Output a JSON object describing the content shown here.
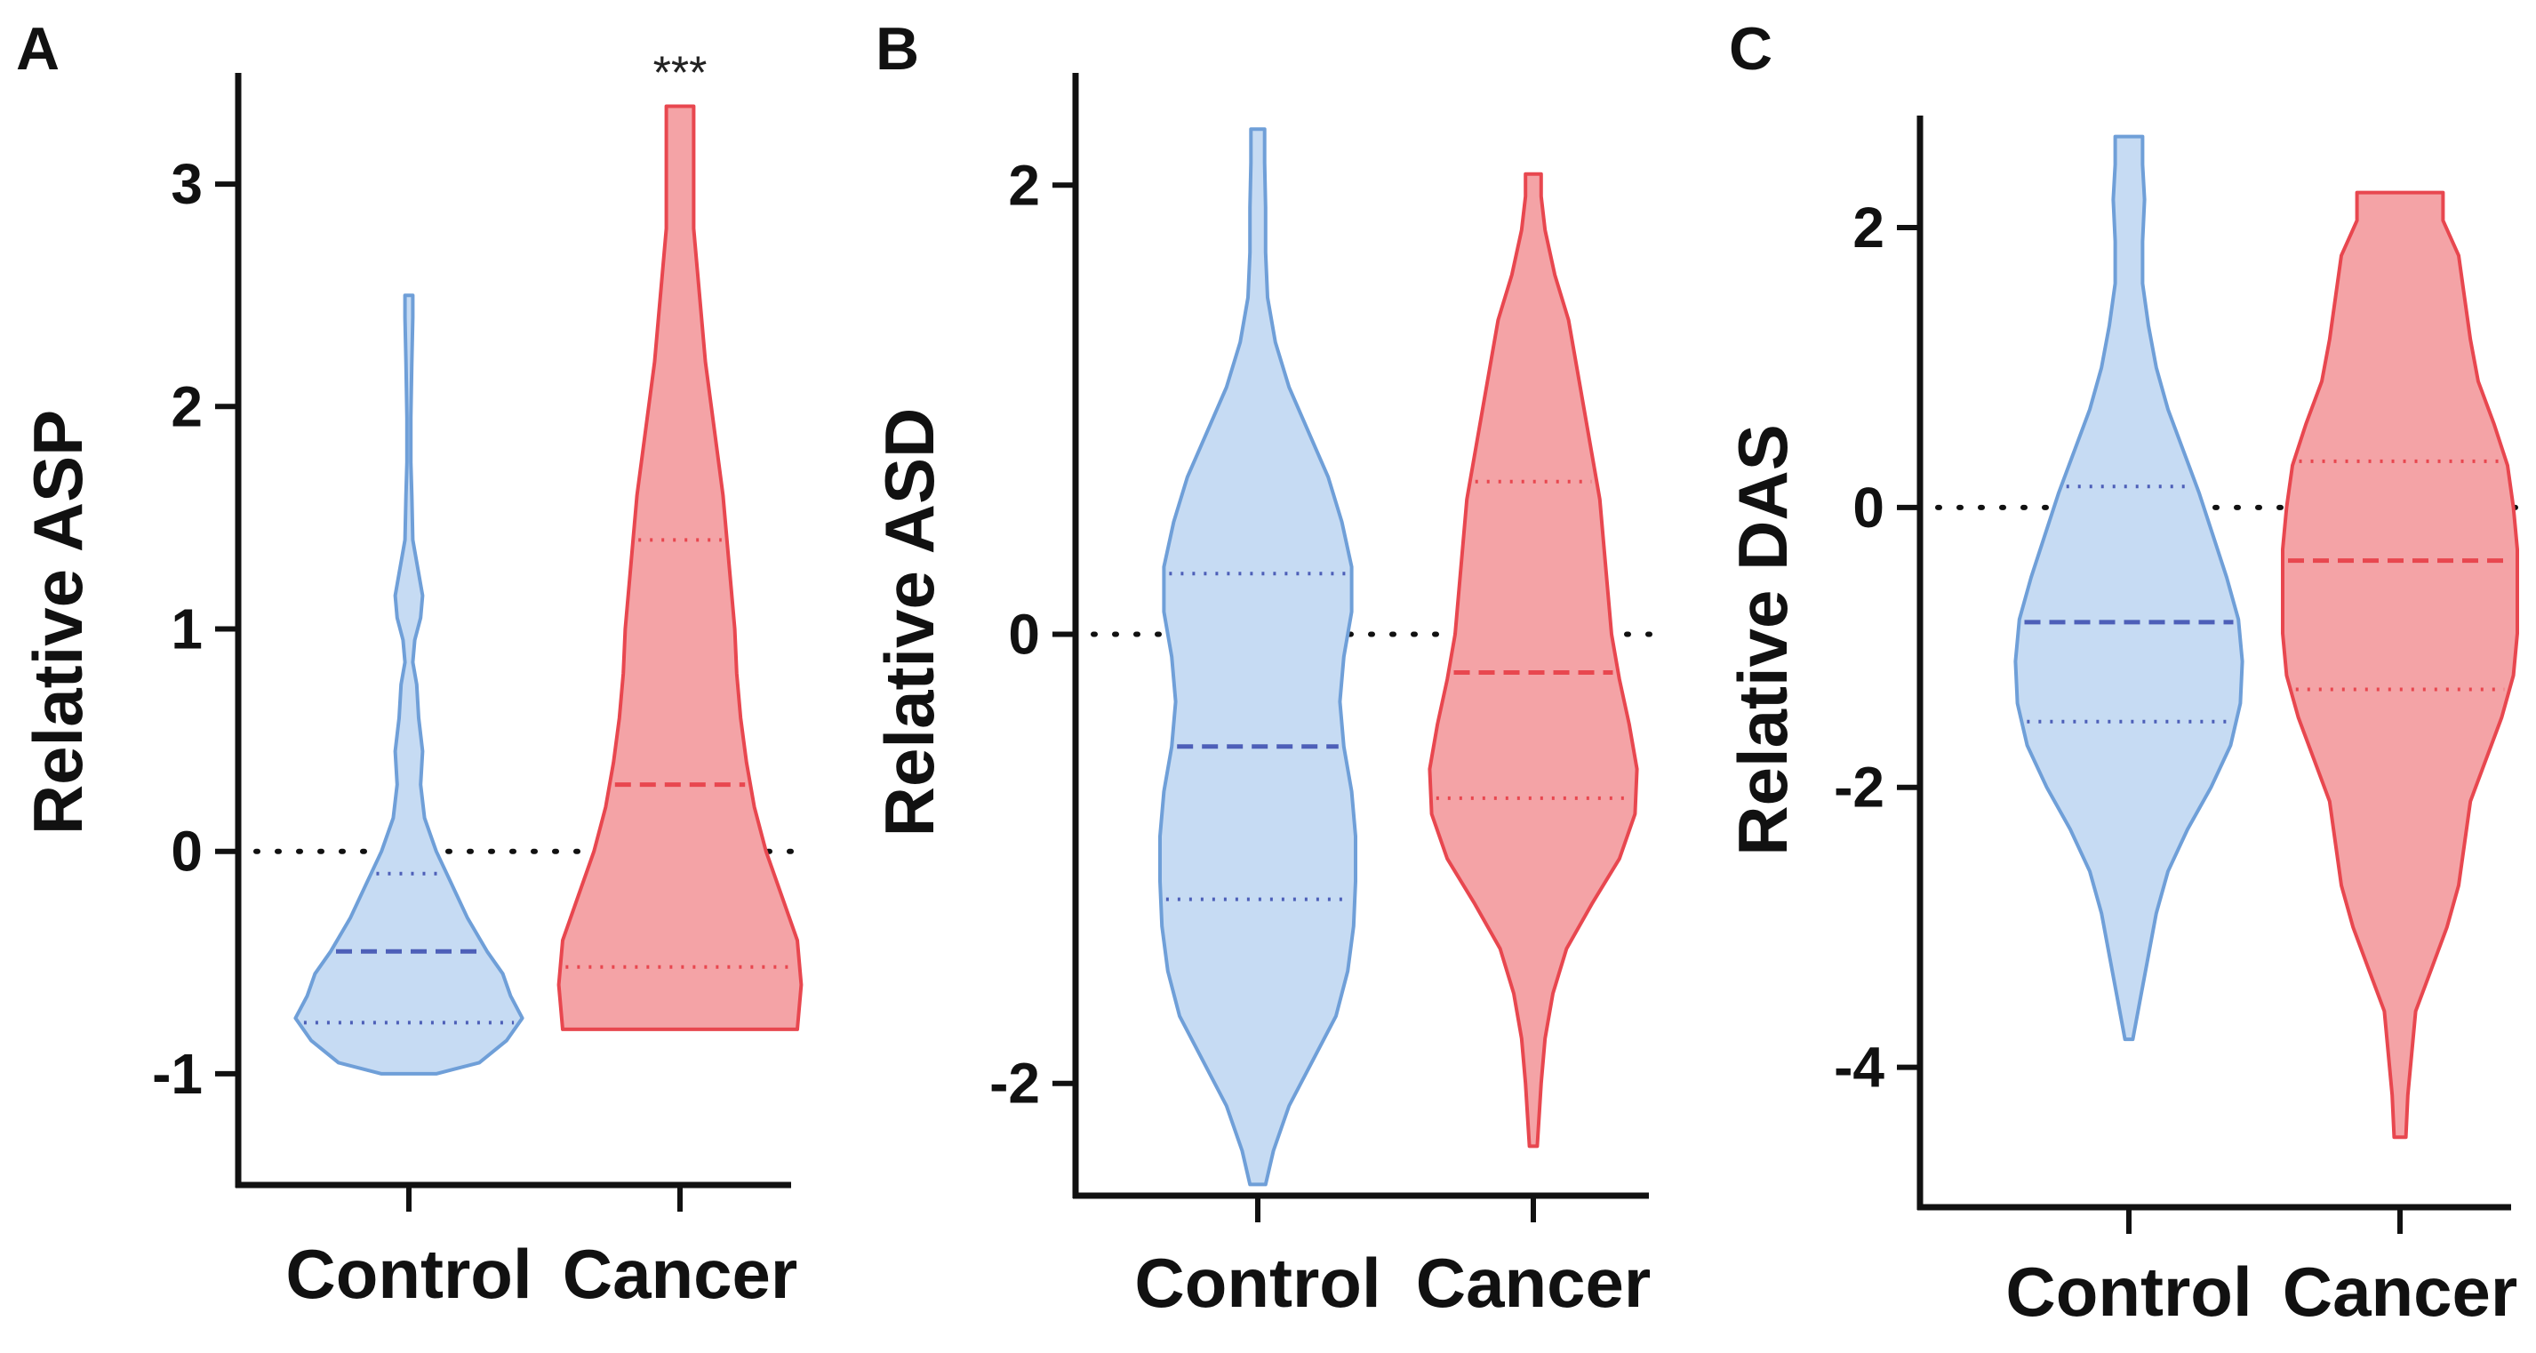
{
  "chart_data": [
    {
      "panel": "A",
      "type": "violin",
      "ylabel": "Relative ASP",
      "categories": [
        "Control",
        "Cancer"
      ],
      "ylim": [
        -1.5,
        3.5
      ],
      "yticks": [
        -1,
        0,
        1,
        2,
        3
      ],
      "tick_labels": [
        "-1",
        "0",
        "1",
        "2",
        "3"
      ],
      "reference_line": 0,
      "annotation": "***",
      "series": [
        {
          "name": "Control",
          "color": "#6f9fd8",
          "fill": "#c6dbf3",
          "min": -1.0,
          "max": 2.5,
          "median": -0.45,
          "q1": -0.77,
          "q3": -0.1,
          "profile": [
            [
              -1.0,
              0.14
            ],
            [
              -0.95,
              0.36
            ],
            [
              -0.85,
              0.5
            ],
            [
              -0.75,
              0.58
            ],
            [
              -0.65,
              0.52
            ],
            [
              -0.55,
              0.48
            ],
            [
              -0.45,
              0.4
            ],
            [
              -0.3,
              0.3
            ],
            [
              -0.15,
              0.22
            ],
            [
              0.0,
              0.14
            ],
            [
              0.15,
              0.08
            ],
            [
              0.3,
              0.06
            ],
            [
              0.45,
              0.07
            ],
            [
              0.6,
              0.05
            ],
            [
              0.75,
              0.04
            ],
            [
              0.85,
              0.02
            ],
            [
              0.95,
              0.03
            ],
            [
              1.05,
              0.06
            ],
            [
              1.15,
              0.07
            ],
            [
              1.25,
              0.05
            ],
            [
              1.4,
              0.02
            ],
            [
              1.6,
              0.015
            ],
            [
              1.75,
              0.01
            ],
            [
              1.95,
              0.01
            ],
            [
              2.2,
              0.015
            ],
            [
              2.4,
              0.02
            ],
            [
              2.5,
              0.02
            ]
          ]
        },
        {
          "name": "Cancer",
          "color": "#e8474f",
          "fill": "#f4a3a6",
          "min": -0.8,
          "max": 3.35,
          "median": 0.3,
          "q1": -0.52,
          "q3": 1.4,
          "profile": [
            [
              -0.8,
              0.6
            ],
            [
              -0.6,
              0.62
            ],
            [
              -0.4,
              0.6
            ],
            [
              -0.2,
              0.52
            ],
            [
              0.0,
              0.44
            ],
            [
              0.2,
              0.38
            ],
            [
              0.4,
              0.34
            ],
            [
              0.6,
              0.31
            ],
            [
              0.8,
              0.29
            ],
            [
              1.0,
              0.28
            ],
            [
              1.2,
              0.26
            ],
            [
              1.4,
              0.24
            ],
            [
              1.6,
              0.22
            ],
            [
              1.8,
              0.19
            ],
            [
              2.0,
              0.16
            ],
            [
              2.2,
              0.13
            ],
            [
              2.4,
              0.11
            ],
            [
              2.6,
              0.09
            ],
            [
              2.8,
              0.07
            ],
            [
              3.0,
              0.07
            ],
            [
              3.2,
              0.07
            ],
            [
              3.35,
              0.07
            ]
          ]
        }
      ]
    },
    {
      "panel": "B",
      "type": "violin",
      "ylabel": "Relative ASD",
      "categories": [
        "Control",
        "Cancer"
      ],
      "ylim": [
        -2.5,
        2.5
      ],
      "yticks": [
        -2,
        0,
        2
      ],
      "tick_labels": [
        "-2",
        "0",
        "2"
      ],
      "reference_line": 0,
      "series": [
        {
          "name": "Control",
          "color": "#6f9fd8",
          "fill": "#c6dbf3",
          "min": -2.45,
          "max": 2.25,
          "median": -0.5,
          "q1": -1.18,
          "q3": 0.27,
          "profile": [
            [
              -2.45,
              0.04
            ],
            [
              -2.3,
              0.08
            ],
            [
              -2.1,
              0.16
            ],
            [
              -1.9,
              0.28
            ],
            [
              -1.7,
              0.4
            ],
            [
              -1.5,
              0.46
            ],
            [
              -1.3,
              0.49
            ],
            [
              -1.1,
              0.5
            ],
            [
              -0.9,
              0.5
            ],
            [
              -0.7,
              0.48
            ],
            [
              -0.5,
              0.44
            ],
            [
              -0.3,
              0.42
            ],
            [
              -0.1,
              0.44
            ],
            [
              0.1,
              0.48
            ],
            [
              0.3,
              0.48
            ],
            [
              0.5,
              0.43
            ],
            [
              0.7,
              0.36
            ],
            [
              0.9,
              0.26
            ],
            [
              1.1,
              0.16
            ],
            [
              1.3,
              0.09
            ],
            [
              1.5,
              0.05
            ],
            [
              1.7,
              0.04
            ],
            [
              1.9,
              0.04
            ],
            [
              2.1,
              0.035
            ],
            [
              2.25,
              0.035
            ]
          ]
        },
        {
          "name": "Cancer",
          "color": "#e8474f",
          "fill": "#f4a3a6",
          "min": -2.28,
          "max": 2.05,
          "median": -0.17,
          "q1": -0.73,
          "q3": 0.68,
          "profile": [
            [
              -2.28,
              0.02
            ],
            [
              -2.0,
              0.04
            ],
            [
              -1.8,
              0.06
            ],
            [
              -1.6,
              0.1
            ],
            [
              -1.4,
              0.17
            ],
            [
              -1.2,
              0.3
            ],
            [
              -1.0,
              0.44
            ],
            [
              -0.8,
              0.52
            ],
            [
              -0.6,
              0.53
            ],
            [
              -0.4,
              0.49
            ],
            [
              -0.2,
              0.44
            ],
            [
              0.0,
              0.4
            ],
            [
              0.2,
              0.38
            ],
            [
              0.4,
              0.36
            ],
            [
              0.6,
              0.34
            ],
            [
              0.8,
              0.3
            ],
            [
              1.0,
              0.26
            ],
            [
              1.2,
              0.22
            ],
            [
              1.4,
              0.18
            ],
            [
              1.6,
              0.11
            ],
            [
              1.8,
              0.06
            ],
            [
              1.95,
              0.04
            ],
            [
              2.05,
              0.04
            ]
          ]
        }
      ]
    },
    {
      "panel": "C",
      "type": "violin",
      "ylabel": "Relative  DAS",
      "categories": [
        "Control",
        "Cancer"
      ],
      "ylim": [
        -5.0,
        2.8
      ],
      "yticks": [
        -4,
        -2,
        0,
        2
      ],
      "tick_labels": [
        "-4",
        "-2",
        "0",
        "2"
      ],
      "reference_line": 0,
      "series": [
        {
          "name": "Control",
          "color": "#6f9fd8",
          "fill": "#c6dbf3",
          "min": -3.8,
          "max": 2.65,
          "median": -0.82,
          "q1": -1.53,
          "q3": 0.15,
          "profile": [
            [
              -3.8,
              0.02
            ],
            [
              -3.5,
              0.06
            ],
            [
              -3.2,
              0.1
            ],
            [
              -2.9,
              0.14
            ],
            [
              -2.6,
              0.2
            ],
            [
              -2.3,
              0.3
            ],
            [
              -2.0,
              0.42
            ],
            [
              -1.7,
              0.52
            ],
            [
              -1.4,
              0.57
            ],
            [
              -1.1,
              0.58
            ],
            [
              -0.8,
              0.56
            ],
            [
              -0.5,
              0.5
            ],
            [
              -0.2,
              0.43
            ],
            [
              0.1,
              0.36
            ],
            [
              0.4,
              0.28
            ],
            [
              0.7,
              0.2
            ],
            [
              1.0,
              0.14
            ],
            [
              1.3,
              0.1
            ],
            [
              1.6,
              0.07
            ],
            [
              1.9,
              0.07
            ],
            [
              2.2,
              0.08
            ],
            [
              2.45,
              0.07
            ],
            [
              2.65,
              0.07
            ]
          ]
        },
        {
          "name": "Cancer",
          "color": "#e8474f",
          "fill": "#f4a3a6",
          "min": -4.5,
          "max": 2.25,
          "median": -0.38,
          "q1": -1.3,
          "q3": 0.33,
          "profile": [
            [
              -4.5,
              0.03
            ],
            [
              -4.2,
              0.04
            ],
            [
              -3.9,
              0.06
            ],
            [
              -3.6,
              0.08
            ],
            [
              -3.3,
              0.16
            ],
            [
              -3.0,
              0.24
            ],
            [
              -2.7,
              0.3
            ],
            [
              -2.4,
              0.33
            ],
            [
              -2.1,
              0.36
            ],
            [
              -1.8,
              0.44
            ],
            [
              -1.5,
              0.52
            ],
            [
              -1.2,
              0.58
            ],
            [
              -0.9,
              0.6
            ],
            [
              -0.6,
              0.6
            ],
            [
              -0.3,
              0.6
            ],
            [
              0.0,
              0.58
            ],
            [
              0.3,
              0.55
            ],
            [
              0.6,
              0.48
            ],
            [
              0.9,
              0.4
            ],
            [
              1.2,
              0.36
            ],
            [
              1.5,
              0.33
            ],
            [
              1.8,
              0.3
            ],
            [
              2.05,
              0.22
            ],
            [
              2.25,
              0.22
            ]
          ]
        }
      ]
    }
  ]
}
